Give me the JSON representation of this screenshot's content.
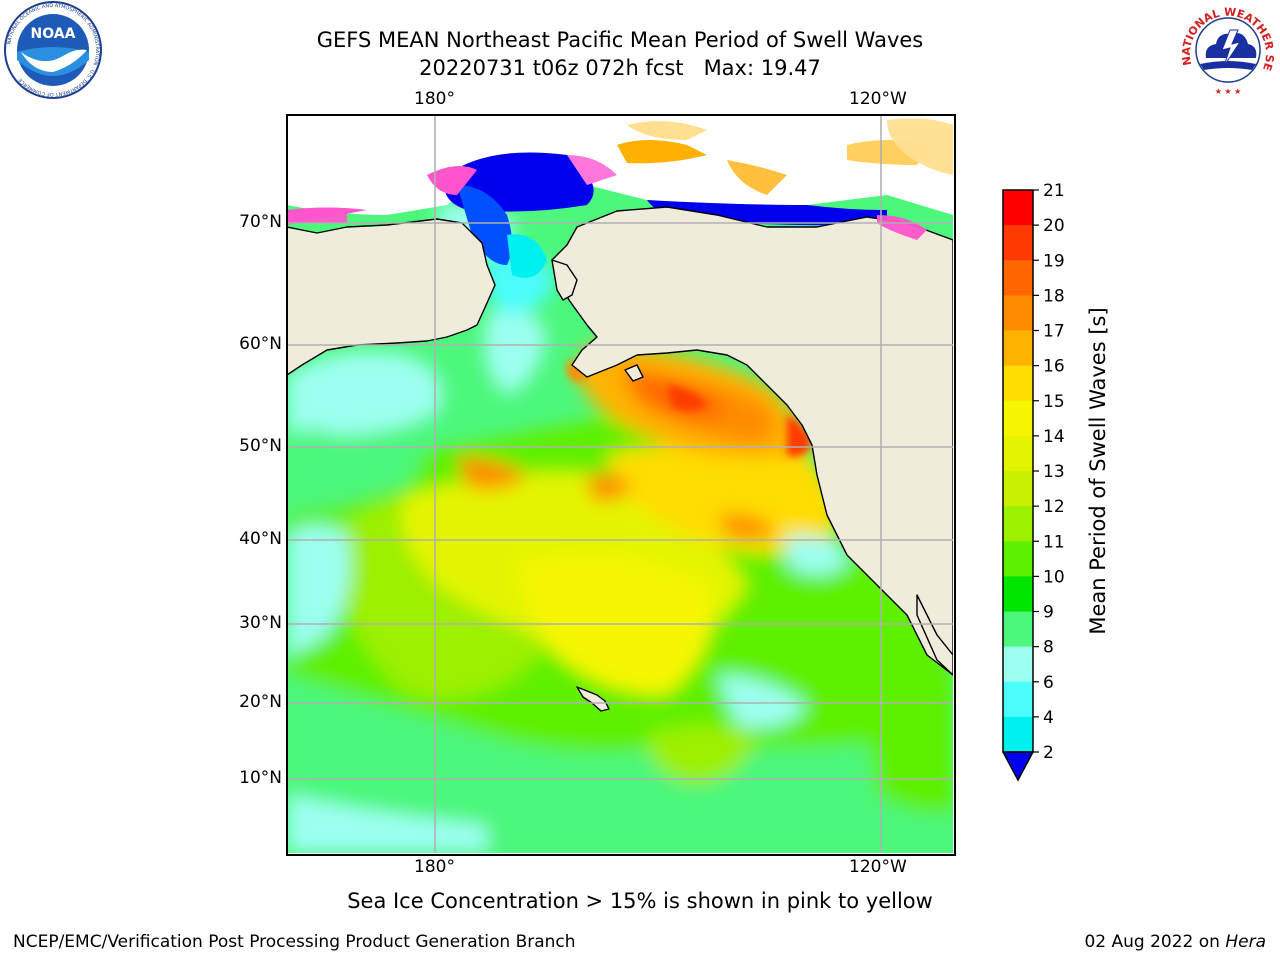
{
  "title": {
    "line1": "GEFS MEAN Northeast Pacific Mean Period of Swell Waves",
    "line2": "20220731 t06z 072h fcst   Max: 19.47"
  },
  "logos": {
    "left": "noaa-logo",
    "left_text": "NOAA",
    "left_ring_text": "NATIONAL OCEANIC AND ATMOSPHERIC ADMINISTRATION · U.S. DEPARTMENT OF COMMERCE",
    "right": "nws-logo",
    "right_ring_text": "NATIONAL WEATHER SERVICE"
  },
  "map": {
    "lon_labels_top": [
      "180°",
      "120°W"
    ],
    "lon_labels_bottom": [
      "180°",
      "120°W"
    ],
    "lat_labels": [
      "70°N",
      "60°N",
      "50°N",
      "40°N",
      "30°N",
      "20°N",
      "10°N"
    ],
    "gridlines": true,
    "land_color": "#efecdc",
    "coast_color": "#000000",
    "grid_color": "#b0b0b0"
  },
  "colorbar": {
    "title": "Mean Period of Swell Waves [s]",
    "ticks": [
      "21",
      "20",
      "19",
      "18",
      "17",
      "16",
      "15",
      "14",
      "13",
      "12",
      "11",
      "10",
      "9",
      "8",
      "6",
      "4",
      "2"
    ],
    "colors": [
      "#ff0000",
      "#ff3a00",
      "#ff6600",
      "#ff8c00",
      "#ffb300",
      "#ffdd00",
      "#f6f600",
      "#e4f400",
      "#c8f000",
      "#9cf000",
      "#5ef000",
      "#00e600",
      "#4cf77c",
      "#9cfff0",
      "#4cfcfc",
      "#00f0f0",
      "#00b0ff",
      "#0050ff",
      "#0000ee"
    ],
    "extend": "min"
  },
  "footnote": "Sea Ice Concentration > 15% is shown in pink to yellow",
  "credit": {
    "left": "NCEP/EMC/Verification Post Processing Product Generation Branch",
    "right_prefix": "02 Aug 2022 on ",
    "right_italic": "Hera"
  }
}
